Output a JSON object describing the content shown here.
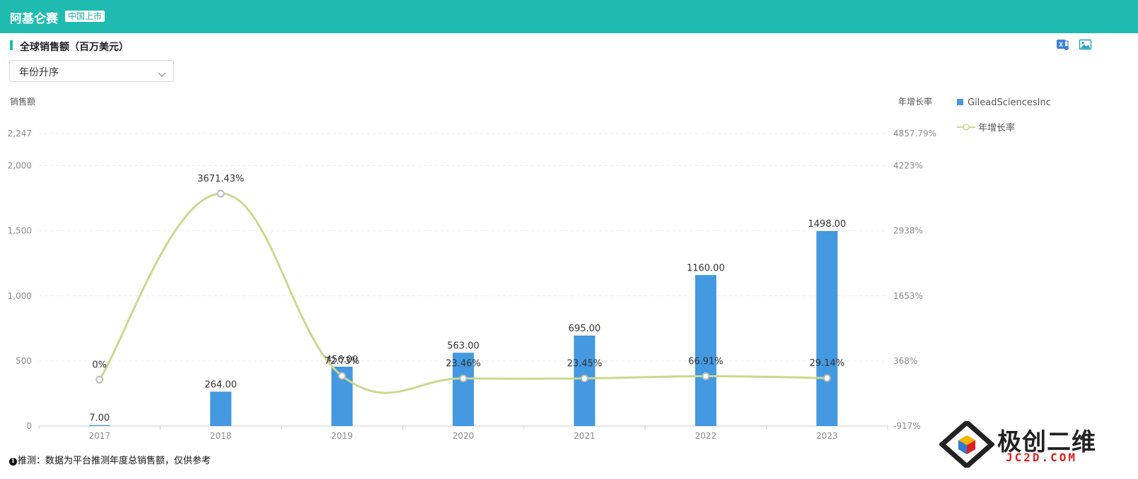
{
  "header": {
    "company": "阿基仑赛",
    "market_badge": "中国上市"
  },
  "section": {
    "title": "全球销售额（百万美元）"
  },
  "toolbar": {
    "excel_icon": "excel-export-icon",
    "image_icon": "image-export-icon"
  },
  "sort": {
    "value": "年份升序"
  },
  "footnote": {
    "icon": "info-icon",
    "text": "推测：数据为平台推测年度总销售额，仅供参考"
  },
  "watermark": {
    "cn": "极创二维",
    "en": "JC2D.COM"
  },
  "colors": {
    "header_bg": "#1fbbb0",
    "bar": "#4499e0",
    "line": "#c9d98e"
  },
  "chart_data": {
    "type": "bar",
    "categories": [
      "2017",
      "2018",
      "2019",
      "2020",
      "2021",
      "2022",
      "2023"
    ],
    "series": [
      {
        "name": "GileadSciencesInc",
        "type": "bar",
        "axis": "left",
        "values": [
          7,
          264,
          456,
          563,
          695,
          1160,
          1498
        ],
        "labels": [
          "7.00",
          "264.00",
          "456.00",
          "563.00",
          "695.00",
          "1160.00",
          "1498.00"
        ]
      },
      {
        "name": "年增长率",
        "type": "line",
        "axis": "right",
        "smooth": true,
        "values": [
          0,
          3671.43,
          72.73,
          23.46,
          23.45,
          66.91,
          29.14
        ],
        "labels": [
          "0%",
          "3671.43%",
          "72.73%",
          "23.46%",
          "23.45%",
          "66.91%",
          "29.14%"
        ]
      }
    ],
    "left_axis": {
      "label": "销售额",
      "range": [
        0,
        2247
      ],
      "ticks": [
        0,
        500,
        1000,
        1500,
        2000,
        2247
      ],
      "tick_labels": [
        "0",
        "500",
        "1,000",
        "1,500",
        "2,000",
        "2,247"
      ]
    },
    "right_axis": {
      "label": "年增长率",
      "range": [
        -917,
        4857.79
      ],
      "ticks": [
        -917,
        368,
        1653,
        2938,
        4223,
        4857.79
      ],
      "tick_labels": [
        "-917%",
        "368%",
        "1653%",
        "2938%",
        "4223%",
        "4857.79%"
      ]
    },
    "grid": true,
    "legend": "right"
  }
}
